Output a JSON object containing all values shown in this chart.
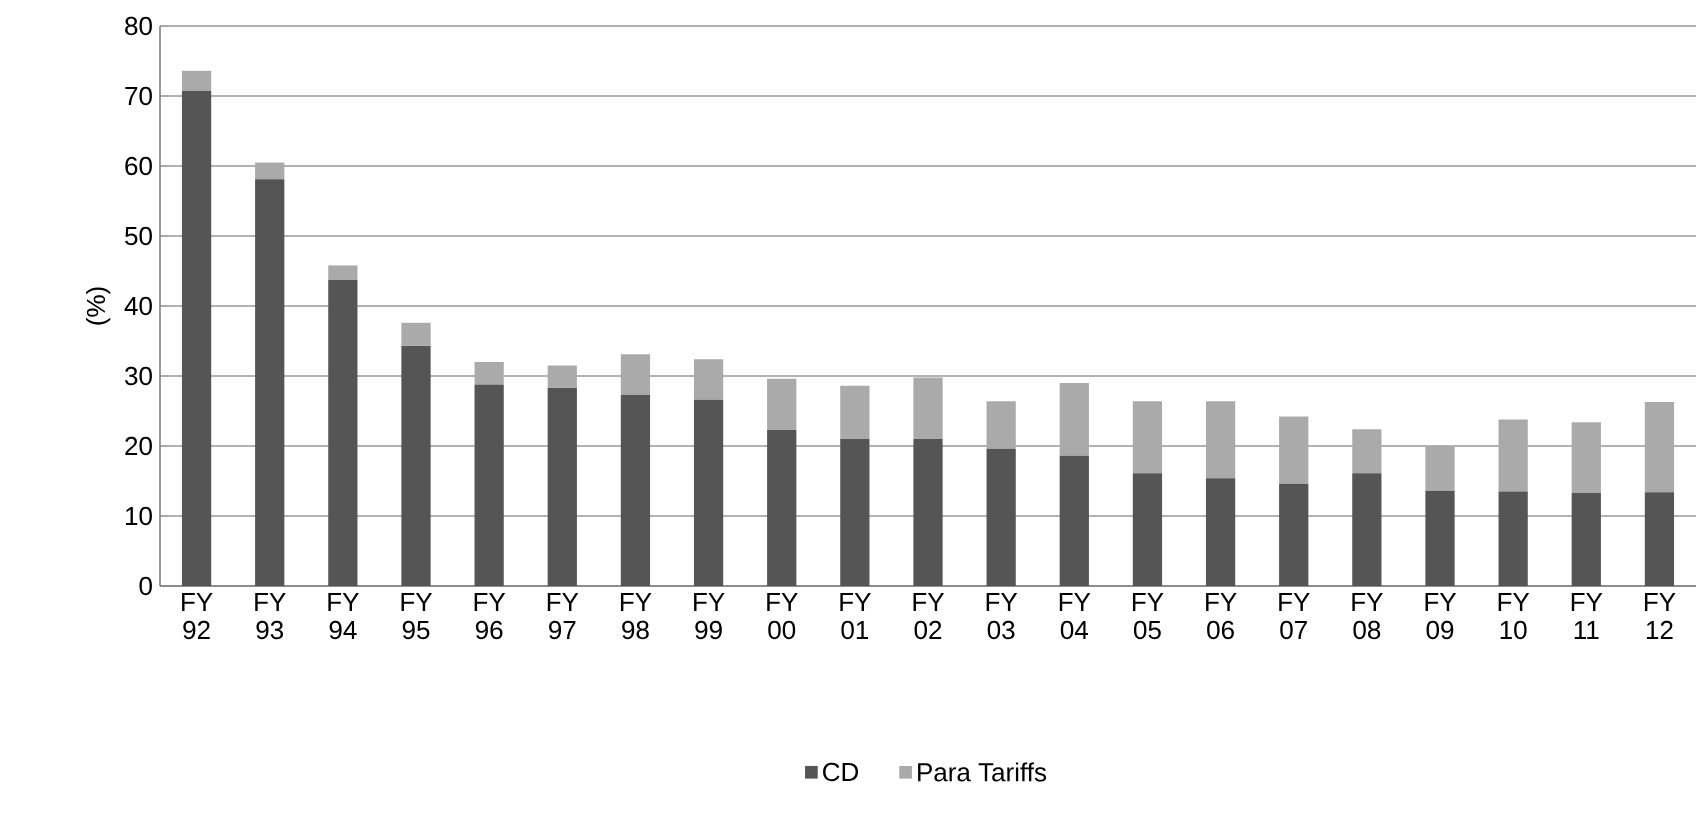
{
  "chart_data": {
    "type": "bar",
    "stacked": true,
    "ylabel": "(%)",
    "categories": [
      "FY 92",
      "FY 93",
      "FY 94",
      "FY 95",
      "FY 96",
      "FY 97",
      "FY 98",
      "FY 99",
      "FY 00",
      "FY 01",
      "FY 02",
      "FY 03",
      "FY 04",
      "FY 05",
      "FY 06",
      "FY 07",
      "FY 08",
      "FY 09",
      "FY 10",
      "FY 11",
      "FY 12"
    ],
    "series": [
      {
        "name": "CD",
        "color": "#555555",
        "values": [
          70.8,
          58.1,
          43.7,
          34.3,
          28.8,
          28.3,
          27.3,
          26.6,
          22.3,
          21.0,
          21.0,
          19.6,
          18.6,
          16.1,
          15.4,
          14.6,
          16.1,
          13.6,
          13.5,
          13.3,
          13.4
        ]
      },
      {
        "name": "Para Tariffs",
        "color": "#aaaaaa",
        "values": [
          2.8,
          2.4,
          2.1,
          3.3,
          3.2,
          3.2,
          5.8,
          5.8,
          7.3,
          7.6,
          8.8,
          6.8,
          10.4,
          10.3,
          11.0,
          9.6,
          6.3,
          6.4,
          10.3,
          10.1,
          12.9
        ]
      }
    ],
    "ylim": [
      0,
      80
    ],
    "yticks": [
      0,
      10,
      20,
      30,
      40,
      50,
      60,
      70,
      80
    ],
    "grid": "y",
    "legend": "bottom"
  }
}
